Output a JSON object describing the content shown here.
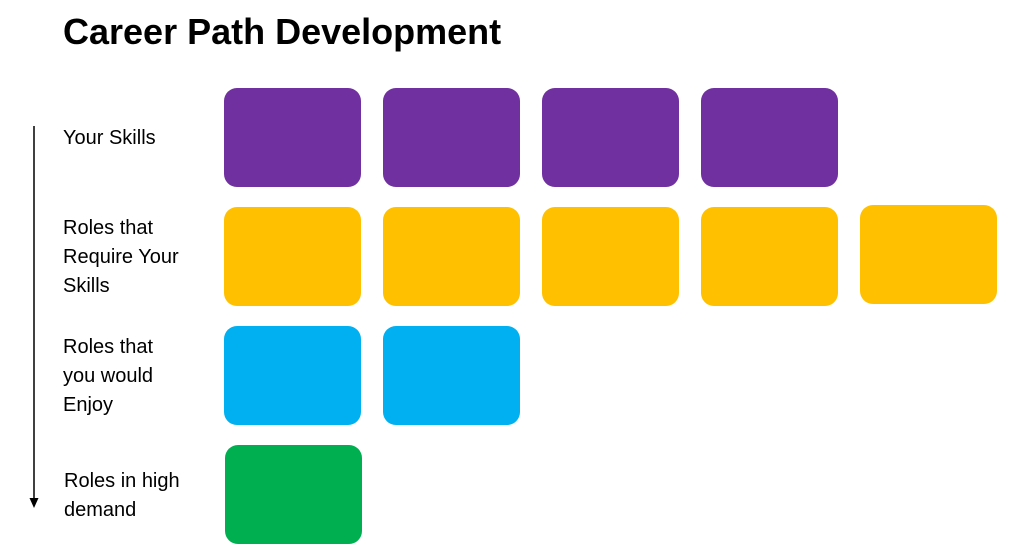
{
  "title": "Career Path Development",
  "colors": {
    "skills": "#7030a0",
    "require_skills": "#ffc000",
    "enjoy": "#00b0f0",
    "high_demand": "#00b050",
    "arrow": "#000000"
  },
  "rows": [
    {
      "label_lines": [
        "Your Skills"
      ],
      "box_count": 4,
      "color_key": "skills"
    },
    {
      "label_lines": [
        "Roles that",
        "Require Your",
        "Skills"
      ],
      "box_count": 5,
      "color_key": "require_skills"
    },
    {
      "label_lines": [
        "Roles that",
        "you would",
        "Enjoy"
      ],
      "box_count": 2,
      "color_key": "enjoy"
    },
    {
      "label_lines": [
        "Roles in high",
        "demand"
      ],
      "box_count": 1,
      "color_key": "high_demand"
    }
  ]
}
